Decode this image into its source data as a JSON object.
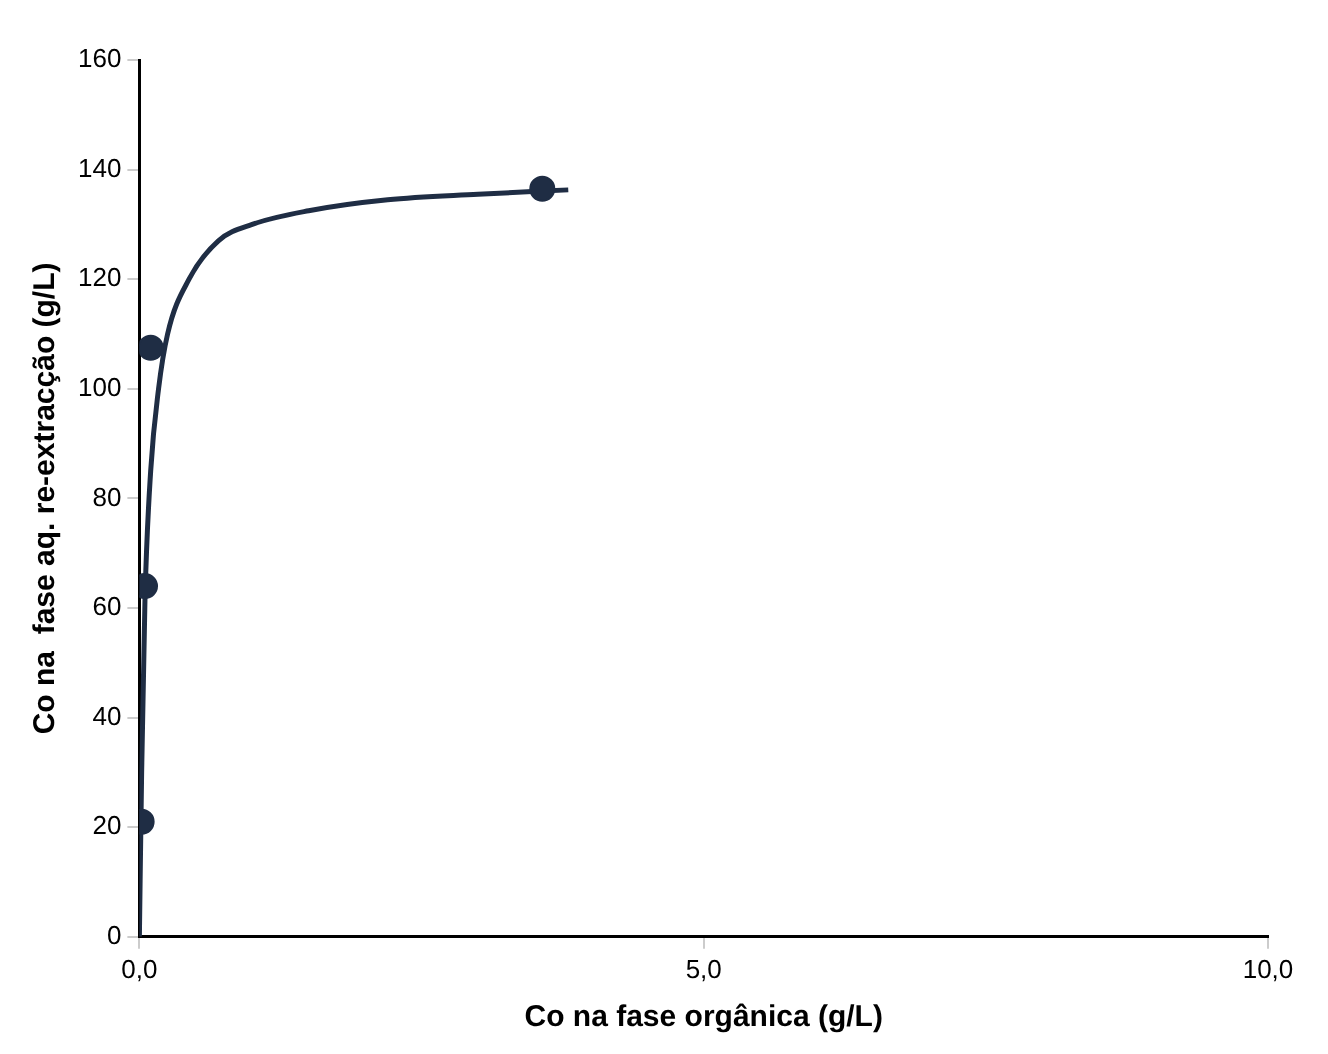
{
  "chart_data": {
    "type": "scatter",
    "xlabel": "Co na fase orgânica (g/L)",
    "ylabel": "Co na  fase aq. re-extracção (g/L)",
    "xlim": [
      0,
      10
    ],
    "xticks": [
      {
        "value": 0,
        "label": "0,0"
      },
      {
        "value": 5,
        "label": "5,0"
      },
      {
        "value": 10,
        "label": "10,0"
      }
    ],
    "ylim": [
      0,
      160
    ],
    "yticks": [
      0,
      20,
      40,
      60,
      80,
      100,
      120,
      140,
      160
    ],
    "grid": false,
    "legend": false,
    "marker": "circle",
    "series": [
      {
        "color": "#1f2d44",
        "x": [
          0.02,
          0.05,
          0.1,
          3.57
        ],
        "values": [
          21,
          64,
          107.5,
          136.5
        ]
      },
      {
        "type": "line",
        "color": "#1f2d44",
        "marker": "none",
        "x": [
          0,
          0.02,
          0.05,
          0.1,
          0.17,
          0.25,
          0.44,
          0.7,
          1.0,
          1.5,
          2.2,
          3.0,
          3.8
        ],
        "values": [
          0,
          30,
          62,
          85,
          100,
          110,
          120,
          127,
          130,
          132.5,
          134.5,
          135.5,
          136.3
        ]
      }
    ]
  }
}
